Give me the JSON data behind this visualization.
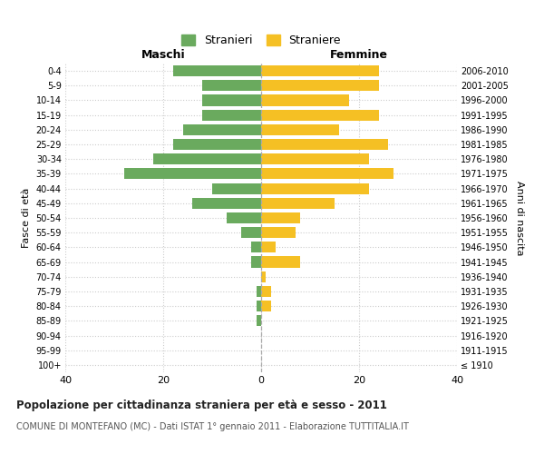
{
  "age_groups": [
    "100+",
    "95-99",
    "90-94",
    "85-89",
    "80-84",
    "75-79",
    "70-74",
    "65-69",
    "60-64",
    "55-59",
    "50-54",
    "45-49",
    "40-44",
    "35-39",
    "30-34",
    "25-29",
    "20-24",
    "15-19",
    "10-14",
    "5-9",
    "0-4"
  ],
  "birth_years": [
    "≤ 1910",
    "1911-1915",
    "1916-1920",
    "1921-1925",
    "1926-1930",
    "1931-1935",
    "1936-1940",
    "1941-1945",
    "1946-1950",
    "1951-1955",
    "1956-1960",
    "1961-1965",
    "1966-1970",
    "1971-1975",
    "1976-1980",
    "1981-1985",
    "1986-1990",
    "1991-1995",
    "1996-2000",
    "2001-2005",
    "2006-2010"
  ],
  "males": [
    0,
    0,
    0,
    1,
    1,
    1,
    0,
    2,
    2,
    4,
    7,
    14,
    10,
    28,
    22,
    18,
    16,
    12,
    12,
    12,
    18
  ],
  "females": [
    0,
    0,
    0,
    0,
    2,
    2,
    1,
    8,
    3,
    7,
    8,
    15,
    22,
    27,
    22,
    26,
    16,
    24,
    18,
    24,
    24
  ],
  "male_color": "#6aaa5e",
  "female_color": "#f5c024",
  "background_color": "#ffffff",
  "grid_color": "#cccccc",
  "title": "Popolazione per cittadinanza straniera per età e sesso - 2011",
  "subtitle": "COMUNE DI MONTEFANO (MC) - Dati ISTAT 1° gennaio 2011 - Elaborazione TUTTITALIA.IT",
  "xlabel_left": "Maschi",
  "xlabel_right": "Femmine",
  "ylabel_left": "Fasce di età",
  "ylabel_right": "Anni di nascita",
  "legend_male": "Stranieri",
  "legend_female": "Straniere",
  "xlim": 40
}
